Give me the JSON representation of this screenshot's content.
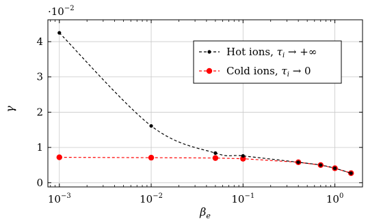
{
  "chart_data": {
    "type": "line",
    "title": "",
    "xlabel": {
      "base": "β",
      "sub": "e"
    },
    "ylabel": "γ",
    "x_scale": "log",
    "xlim": [
      0.00075,
      2.0
    ],
    "ylim": [
      -0.0012,
      0.0462
    ],
    "y_multiplier": {
      "base": "·10",
      "exp": "−2"
    },
    "grid": true,
    "legend_position": "top-right",
    "x_ticks": [
      {
        "value": 0.001,
        "base": "10",
        "exp": "−3"
      },
      {
        "value": 0.01,
        "base": "10",
        "exp": "−2"
      },
      {
        "value": 0.1,
        "base": "10",
        "exp": "−1"
      },
      {
        "value": 1,
        "base": "10",
        "exp": "0"
      }
    ],
    "y_ticks": [
      {
        "value": 0.0,
        "label": "0"
      },
      {
        "value": 0.01,
        "label": "1"
      },
      {
        "value": 0.02,
        "label": "2"
      },
      {
        "value": 0.03,
        "label": "3"
      },
      {
        "value": 0.04,
        "label": "4"
      }
    ],
    "series": [
      {
        "name": "Hot ions, τi → +∞",
        "legend_text": "Hot ions, ",
        "legend_math": "τ",
        "legend_sub": "i",
        "legend_tail": " → +∞",
        "color": "#000000",
        "marker_size": "small",
        "x": [
          0.001,
          0.01,
          0.05,
          0.1,
          0.4,
          0.7,
          1.0,
          1.5
        ],
        "y": [
          0.0425,
          0.0161,
          0.0084,
          0.0076,
          0.0058,
          0.005,
          0.0041,
          0.0027
        ]
      },
      {
        "name": "Cold ions, τi → 0",
        "legend_text": "Cold ions, ",
        "legend_math": "τ",
        "legend_sub": "i",
        "legend_tail": " → 0",
        "color": "#ff0000",
        "marker_size": "large",
        "x": [
          0.001,
          0.01,
          0.05,
          0.1,
          0.4,
          0.7,
          1.0,
          1.5
        ],
        "y": [
          0.0072,
          0.0071,
          0.007,
          0.0068,
          0.0058,
          0.005,
          0.0041,
          0.0027
        ]
      }
    ]
  }
}
